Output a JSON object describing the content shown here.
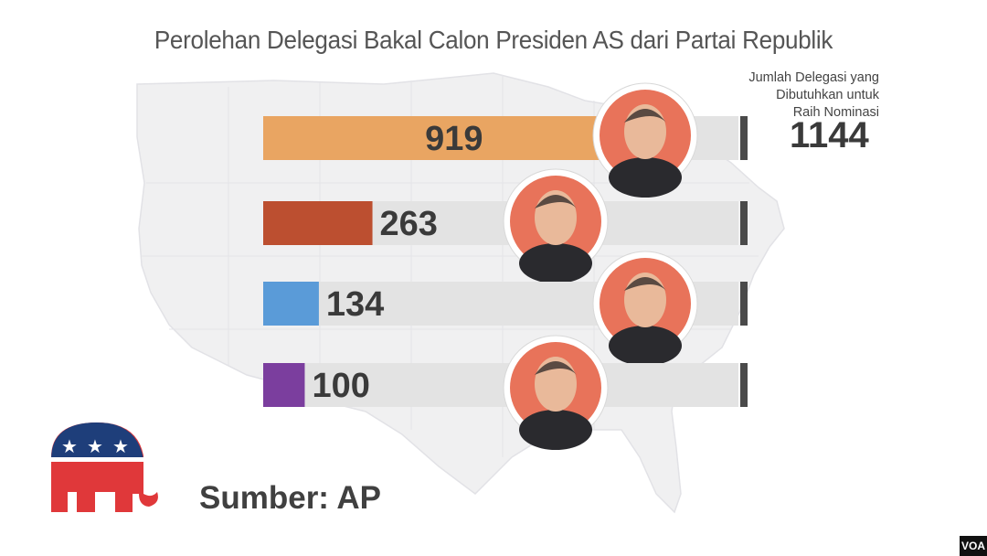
{
  "chart_data": {
    "type": "bar",
    "orientation": "horizontal",
    "title": "Perolehan Delegasi Bakal Calon Presiden AS dari Partai Republik",
    "values": [
      919,
      263,
      134,
      100
    ],
    "colors": [
      "#E9A562",
      "#BC4F30",
      "#5A9BD8",
      "#7B3E9E"
    ],
    "target_label": "Jumlah Delegasi yang Dibutuhkan untuk Raih Nominasi",
    "target_label_lines": [
      "Jumlah Delegasi yang",
      "Dibutuhkan untuk",
      "Raih Nominasi"
    ],
    "target_value": 1144,
    "xlim": [
      0,
      1144
    ],
    "grid": false,
    "legend": "none"
  },
  "source": "Sumber: AP",
  "watermark": "VOA",
  "icons": [
    "republican-elephant-icon",
    "us-map-background"
  ],
  "colors": {
    "track": "#E3E3E3",
    "target_marker": "#4A4A4A",
    "text": "#3A3A3A"
  }
}
